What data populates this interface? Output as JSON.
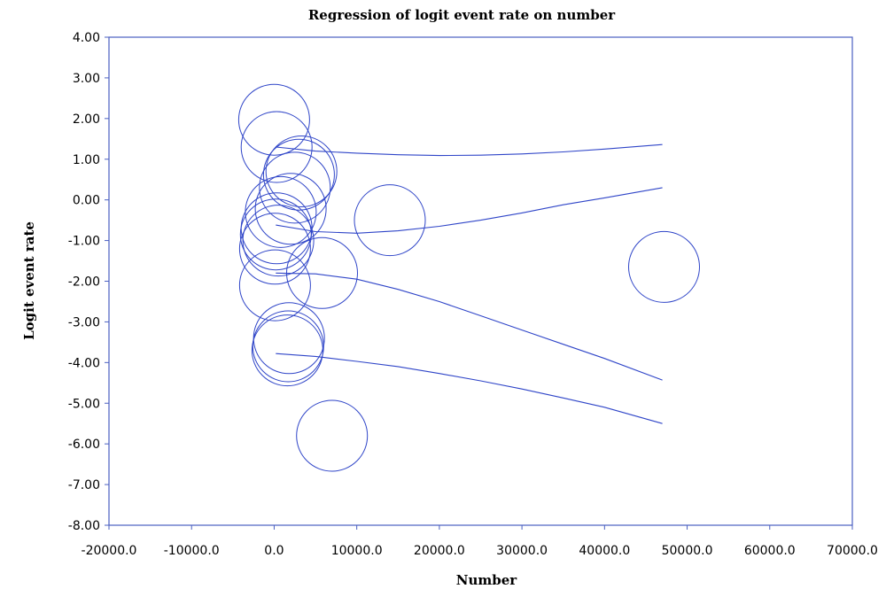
{
  "chart_data": {
    "type": "scatter",
    "title": "Regression of logit event rate on number",
    "xlabel": "Number",
    "ylabel": "Logit event rate",
    "xlim": [
      -20000,
      70000
    ],
    "ylim": [
      -8,
      4
    ],
    "xticks": [
      -20000,
      -10000,
      0,
      10000,
      20000,
      30000,
      40000,
      50000,
      60000,
      70000
    ],
    "xtick_labels": [
      "-20000.0",
      "-10000.0",
      "0.0",
      "10000.0",
      "20000.0",
      "30000.0",
      "40000.0",
      "50000.0",
      "60000.0",
      "70000.0"
    ],
    "yticks": [
      4,
      3,
      2,
      1,
      0,
      -1,
      -2,
      -3,
      -4,
      -5,
      -6,
      -7,
      -8
    ],
    "ytick_labels": [
      "4.00",
      "3.00",
      "2.00",
      "1.00",
      "0.00",
      "-1.00",
      "-2.00",
      "-3.00",
      "-4.00",
      "-5.00",
      "-6.00",
      "-7.00",
      "-8.00"
    ],
    "grid": false,
    "legend": false,
    "color": "#2f45c8",
    "points": [
      {
        "x": 0,
        "y": 1.97
      },
      {
        "x": 300,
        "y": 1.3
      },
      {
        "x": 3300,
        "y": 0.7
      },
      {
        "x": 3000,
        "y": 0.62
      },
      {
        "x": 2500,
        "y": 0.3
      },
      {
        "x": 2000,
        "y": -0.22
      },
      {
        "x": 800,
        "y": -0.3
      },
      {
        "x": 300,
        "y": -0.7
      },
      {
        "x": 200,
        "y": -0.85
      },
      {
        "x": 500,
        "y": -1.0
      },
      {
        "x": 100,
        "y": -1.2
      },
      {
        "x": 5800,
        "y": -1.8
      },
      {
        "x": 100,
        "y": -2.1
      },
      {
        "x": 1800,
        "y": -3.4
      },
      {
        "x": 1700,
        "y": -3.6
      },
      {
        "x": 1600,
        "y": -3.7
      },
      {
        "x": 14000,
        "y": -0.5
      },
      {
        "x": 47200,
        "y": -1.65
      },
      {
        "x": 7000,
        "y": -5.8
      }
    ],
    "curves": [
      {
        "x": [
          200,
          5000,
          10000,
          15000,
          20000,
          25000,
          30000,
          35000,
          40000,
          47000
        ],
        "y": [
          1.3,
          1.2,
          1.15,
          1.11,
          1.09,
          1.1,
          1.13,
          1.18,
          1.25,
          1.36
        ]
      },
      {
        "x": [
          200,
          5000,
          10000,
          15000,
          20000,
          25000,
          30000,
          35000,
          40000,
          47000
        ],
        "y": [
          -0.62,
          -0.78,
          -0.82,
          -0.76,
          -0.65,
          -0.5,
          -0.32,
          -0.12,
          0.05,
          0.3
        ]
      },
      {
        "x": [
          200,
          5000,
          10000,
          15000,
          20000,
          25000,
          30000,
          35000,
          40000,
          47000
        ],
        "y": [
          -1.8,
          -1.82,
          -1.95,
          -2.2,
          -2.5,
          -2.85,
          -3.2,
          -3.55,
          -3.9,
          -4.43
        ]
      },
      {
        "x": [
          200,
          5000,
          10000,
          15000,
          20000,
          25000,
          30000,
          35000,
          40000,
          47000
        ],
        "y": [
          -3.78,
          -3.85,
          -3.97,
          -4.1,
          -4.27,
          -4.45,
          -4.65,
          -4.87,
          -5.1,
          -5.5
        ]
      }
    ]
  }
}
